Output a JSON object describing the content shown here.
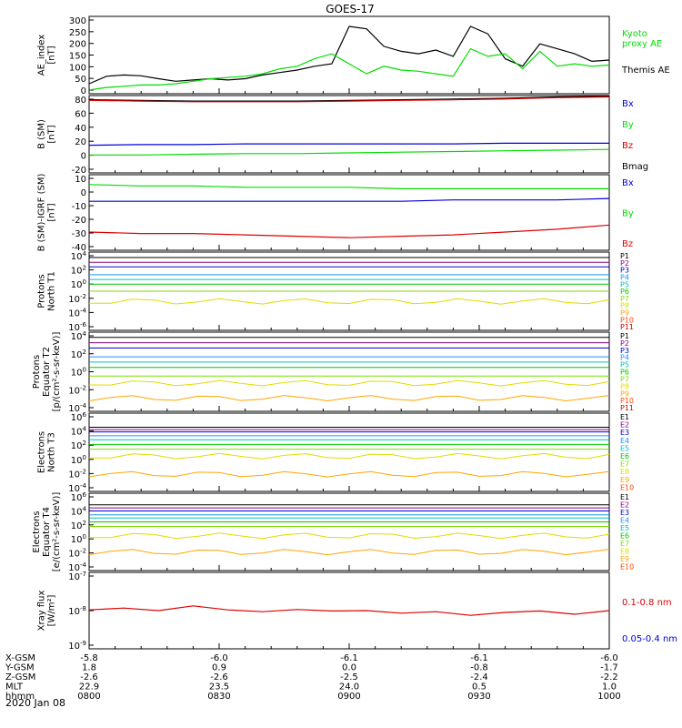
{
  "title": "GOES-17",
  "colors": {
    "black": "#000000",
    "green": "#00dd00",
    "red": "#dd0000",
    "blue": "#0000dd",
    "darkred": "#990000",
    "ae_kyoto": "#00dd00",
    "p": [
      "#000000",
      "#8b008b",
      "#0000cd",
      "#1e90ff",
      "#00bfbf",
      "#00c800",
      "#7cdf00",
      "#dddd00",
      "#ffa500",
      "#ff4500",
      "#cc0000"
    ],
    "e": [
      "#000000",
      "#8b008b",
      "#0000cd",
      "#1e90ff",
      "#00bfbf",
      "#00c800",
      "#7cdf00",
      "#dddd00",
      "#ffa500",
      "#ff4500"
    ]
  },
  "chart_data": [
    {
      "type": "line",
      "ylabel": "AE_index\n[nT]",
      "yticks": [
        "300",
        "250",
        "200",
        "150",
        "100",
        "50",
        "0"
      ],
      "ylim": [
        0,
        310
      ],
      "legend": [
        {
          "label": "Kyoto\nproxy AE",
          "color": "green"
        },
        {
          "label": "Themis AE",
          "color": "black"
        }
      ],
      "series": [
        {
          "name": "Themis AE",
          "color": "black",
          "values": [
            40,
            70,
            75,
            72,
            60,
            50,
            55,
            60,
            55,
            60,
            75,
            85,
            95,
            110,
            120,
            270,
            260,
            190,
            170,
            160,
            175,
            150,
            270,
            240,
            140,
            110,
            200,
            180,
            160,
            130,
            135
          ]
        },
        {
          "name": "Kyoto proxy AE",
          "color": "green",
          "values": [
            15,
            25,
            30,
            35,
            35,
            40,
            50,
            60,
            65,
            70,
            80,
            100,
            110,
            140,
            160,
            120,
            80,
            110,
            95,
            90,
            80,
            70,
            180,
            150,
            160,
            100,
            170,
            110,
            120,
            110,
            115
          ]
        }
      ]
    },
    {
      "type": "line",
      "ylabel": "B (SM)\n[nT]",
      "yticks": [
        "80",
        "60",
        "40",
        "20",
        "0",
        "-20"
      ],
      "ylim": [
        -28,
        84
      ],
      "legend": [
        {
          "label": "Bx",
          "color": "blue"
        },
        {
          "label": "By",
          "color": "green"
        },
        {
          "label": "Bz",
          "color": "red"
        },
        {
          "label": "Bmag",
          "color": "black"
        }
      ],
      "series": [
        {
          "name": "Bmag",
          "color": "black",
          "values": [
            78,
            77,
            76,
            76,
            76,
            77,
            78,
            79,
            80,
            82,
            83
          ]
        },
        {
          "name": "Bz",
          "color": "red",
          "values": [
            77,
            76,
            75,
            75,
            75,
            76,
            77,
            78,
            79,
            81,
            82
          ]
        },
        {
          "name": "Bx",
          "color": "blue",
          "values": [
            12,
            13,
            13,
            14,
            14,
            14,
            14,
            14,
            15,
            15,
            15
          ]
        },
        {
          "name": "By",
          "color": "green",
          "values": [
            -2,
            -2,
            -1,
            0,
            0,
            1,
            2,
            3,
            4,
            5,
            6
          ]
        }
      ]
    },
    {
      "type": "line",
      "ylabel": "B (SM)-IGRF (SM)\n[nT]",
      "yticks": [
        "10",
        "0",
        "-10",
        "-20",
        "-30",
        "-40"
      ],
      "ylim": [
        -42,
        12
      ],
      "legend": [
        {
          "label": "Bx",
          "color": "blue"
        },
        {
          "label": "By",
          "color": "green"
        },
        {
          "label": "Bz",
          "color": "red"
        }
      ],
      "series": [
        {
          "name": "By",
          "color": "green",
          "values": [
            5,
            4,
            4,
            3,
            3,
            3,
            2,
            2,
            2,
            2,
            2
          ]
        },
        {
          "name": "Bx",
          "color": "blue",
          "values": [
            -7,
            -7,
            -7,
            -7,
            -7,
            -7,
            -7,
            -6,
            -6,
            -6,
            -5
          ]
        },
        {
          "name": "Bz",
          "color": "red",
          "values": [
            -29,
            -30,
            -30,
            -31,
            -32,
            -33,
            -32,
            -31,
            -29,
            -27,
            -24
          ]
        }
      ]
    },
    {
      "type": "line",
      "ylabel": "Protons\nNorth T1",
      "yticks": [
        "10^4",
        "10^2",
        "10^0",
        "10^-2",
        "10^-4",
        "10^-6"
      ],
      "ylog": true,
      "ylim": [
        -6,
        4
      ],
      "legend_labels": [
        "P1",
        "P2",
        "P3",
        "P4",
        "P5",
        "P6",
        "P7",
        "P8",
        "P9",
        "P10",
        "P11"
      ],
      "levels": [
        3.3,
        2.7,
        2.1,
        1.1,
        0.5,
        -0.1,
        -1.0,
        -2.3,
        null,
        null,
        null
      ]
    },
    {
      "type": "line",
      "ylabel": "Protons\nEquator T2\n[p/(cm²-s-sr-keV)]",
      "yticks": [
        "10^4",
        "10^2",
        "10^0",
        "10^-2",
        "10^-4"
      ],
      "ylog": true,
      "ylim": [
        -5,
        4
      ],
      "legend_labels": [
        "P1",
        "P2",
        "P3",
        "P4",
        "P5",
        "P6",
        "P7",
        "P8",
        "P9",
        "P10",
        "P11"
      ],
      "levels": [
        3.4,
        2.8,
        2.2,
        1.2,
        0.6,
        0.0,
        -1.0,
        -1.8,
        -3.5,
        null,
        null
      ]
    },
    {
      "type": "line",
      "ylabel": "Electrons\nNorth T3",
      "yticks": [
        "10^6",
        "10^4",
        "10^2",
        "10^0",
        "10^-2",
        "10^-4"
      ],
      "ylog": true,
      "ylim": [
        -4,
        6
      ],
      "legend_labels": [
        "E1",
        "E2",
        "E3",
        "E4",
        "E5",
        "E6",
        "E7",
        "E8",
        "E9",
        "E10"
      ],
      "levels": [
        4.2,
        3.9,
        3.6,
        3.1,
        2.6,
        2.0,
        1.4,
        0.5,
        -1.8,
        null
      ]
    },
    {
      "type": "line",
      "ylabel": "Electrons\nEquator T4\n[e/(cm²-s-sr-keV)]",
      "yticks": [
        "10^6",
        "10^4",
        "10^2",
        "10^0",
        "10^-2",
        "10^-4"
      ],
      "ylog": true,
      "ylim": [
        -4,
        6
      ],
      "legend_labels": [
        "E1",
        "E2",
        "E3",
        "E4",
        "E5",
        "E6",
        "E7",
        "E8",
        "E9",
        "E10"
      ],
      "levels": [
        4.5,
        4.1,
        3.7,
        3.2,
        2.8,
        2.3,
        1.7,
        0.5,
        -1.6,
        null
      ]
    },
    {
      "type": "line",
      "ylabel": "Xray flux\n[W/m²]",
      "yticks": [
        "10^-7",
        "10^-8",
        "10^-9"
      ],
      "ylog": true,
      "ylim": [
        -9.1,
        -7
      ],
      "legend": [
        {
          "label": "0.1-0.8 nm",
          "color": "red"
        },
        {
          "label": "0.05-0.4 nm",
          "color": "blue"
        }
      ],
      "series": [
        {
          "name": "0.1-0.8 nm",
          "color": "red",
          "values": [
            -8.03,
            -7.98,
            -8.05,
            -7.92,
            -8.03,
            -8.08,
            -8.02,
            -8.06,
            -8.05,
            -8.12,
            -8.08,
            -8.18,
            -8.1,
            -8.06,
            -8.15,
            -8.05
          ]
        }
      ]
    }
  ],
  "x_axis": {
    "rows": [
      {
        "label": "X-GSM",
        "values": [
          "-5.8",
          "-6.0",
          "-6.1",
          "-6.1",
          "-6.0"
        ]
      },
      {
        "label": "Y-GSM",
        "values": [
          "1.8",
          "0.9",
          "0.0",
          "-0.8",
          "-1.7"
        ]
      },
      {
        "label": "Z-GSM",
        "values": [
          "-2.6",
          "-2.6",
          "-2.5",
          "-2.4",
          "-2.2"
        ]
      },
      {
        "label": "MLT",
        "values": [
          "22.9",
          "23.5",
          "24.0",
          "0.5",
          "1.0"
        ]
      },
      {
        "label": "hhmm",
        "values": [
          "0800",
          "0830",
          "0900",
          "0930",
          "1000"
        ]
      }
    ],
    "date": "2020 Jan 08"
  }
}
